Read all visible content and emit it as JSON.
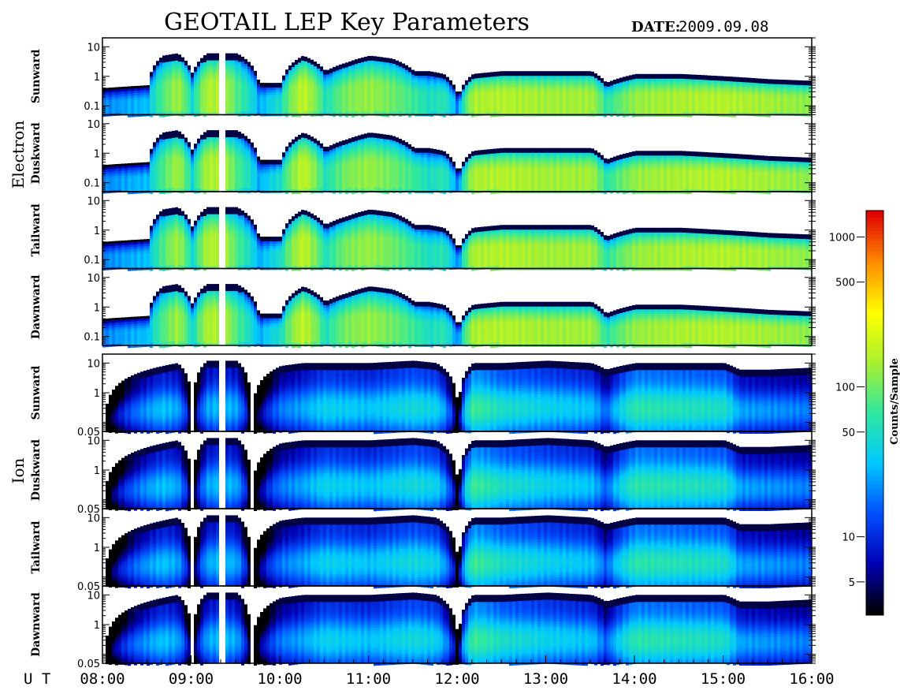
{
  "header": {
    "title": "GEOTAIL LEP Key Parameters",
    "date_label": "DATE:",
    "date_value": "2009.09.08"
  },
  "x_axis": {
    "unit_label": "U T",
    "ticks": [
      "08:00",
      "09:00",
      "10:00",
      "11:00",
      "12:00",
      "13:00",
      "14:00",
      "15:00",
      "16:00"
    ]
  },
  "groups": {
    "electron": "Electron",
    "ion": "Ion"
  },
  "panels": [
    {
      "name": "Sunward",
      "group": "electron",
      "ticks": [
        "10",
        "1",
        "0.1"
      ]
    },
    {
      "name": "Duskward",
      "group": "electron",
      "ticks": [
        "10",
        "1",
        "0.1"
      ]
    },
    {
      "name": "Tailward",
      "group": "electron",
      "ticks": [
        "10",
        "1",
        "0.1"
      ]
    },
    {
      "name": "Dawnward",
      "group": "electron",
      "ticks": [
        "10",
        "1",
        "0.1"
      ]
    },
    {
      "name": "Sunward",
      "group": "ion",
      "ticks": [
        "10",
        "1",
        "0.05"
      ]
    },
    {
      "name": "Duskward",
      "group": "ion",
      "ticks": [
        "10",
        "1",
        "0.05"
      ]
    },
    {
      "name": "Tailward",
      "group": "ion",
      "ticks": [
        "10",
        "1",
        "0.05"
      ]
    },
    {
      "name": "Dawnward",
      "group": "ion",
      "ticks": [
        "10",
        "1",
        "0.05"
      ]
    }
  ],
  "colorbar": {
    "label": "Counts/Sample",
    "ticks": [
      "1000",
      "500",
      "100",
      "50",
      "10",
      "5"
    ],
    "tick_values": [
      1000,
      500,
      100,
      50,
      10,
      5
    ],
    "range": [
      3,
      1500
    ],
    "scale": "log",
    "colors": [
      "#000000",
      "#0000b4",
      "#0050ff",
      "#00c8ff",
      "#2ee8a0",
      "#a8f030",
      "#ffff00",
      "#ff8c00",
      "#e00000"
    ]
  },
  "chart_data": {
    "type": "heatmap",
    "title": "GEOTAIL LEP Key Parameters",
    "x_range": [
      "08:00",
      "16:00"
    ],
    "y_scale": "log",
    "electron_y_range": [
      0.05,
      20
    ],
    "ion_y_range": [
      0.05,
      20
    ],
    "gap_utc": "09:20",
    "electron_intensity_profile": {
      "x": [
        "08:00",
        "08:30",
        "08:40",
        "08:50",
        "09:00",
        "09:10",
        "09:20",
        "09:30",
        "09:45",
        "10:00",
        "10:15",
        "10:30",
        "10:45",
        "11:00",
        "11:15",
        "11:30",
        "11:40",
        "11:50",
        "12:00",
        "12:10",
        "12:30",
        "13:00",
        "13:30",
        "13:40",
        "14:00",
        "14:30",
        "15:00",
        "15:30",
        "16:00"
      ],
      "top_energy": [
        0.4,
        0.5,
        5,
        6,
        1.2,
        6,
        6,
        6,
        0.6,
        0.6,
        5,
        1.5,
        3,
        5,
        4,
        1.5,
        1.5,
        1.2,
        0.2,
        1.2,
        1.5,
        1.5,
        1.5,
        0.6,
        1.2,
        1.2,
        1,
        0.8,
        0.7
      ],
      "peak_counts": [
        20,
        30,
        80,
        140,
        40,
        150,
        160,
        80,
        25,
        50,
        180,
        50,
        110,
        130,
        100,
        70,
        50,
        60,
        15,
        150,
        160,
        140,
        140,
        60,
        130,
        150,
        160,
        140,
        120
      ]
    },
    "ion_intensity_profile": {
      "x": [
        "08:00",
        "08:40",
        "08:50",
        "09:00",
        "09:10",
        "09:20",
        "09:30",
        "09:40",
        "10:00",
        "10:15",
        "10:30",
        "11:00",
        "11:30",
        "11:45",
        "12:00",
        "12:10",
        "12:30",
        "13:00",
        "13:30",
        "13:40",
        "14:00",
        "14:30",
        "15:00",
        "15:10",
        "15:30",
        "16:00"
      ],
      "top_energy": [
        0,
        8,
        10,
        0,
        12,
        12,
        12,
        0,
        8,
        10,
        10,
        10,
        12,
        10,
        0,
        10,
        10,
        12,
        10,
        6,
        10,
        10,
        10,
        6,
        6,
        7
      ],
      "peak_counts": [
        0,
        25,
        20,
        0,
        20,
        25,
        20,
        0,
        15,
        20,
        30,
        25,
        35,
        30,
        0,
        60,
        40,
        30,
        25,
        12,
        50,
        45,
        40,
        20,
        18,
        15
      ]
    }
  }
}
